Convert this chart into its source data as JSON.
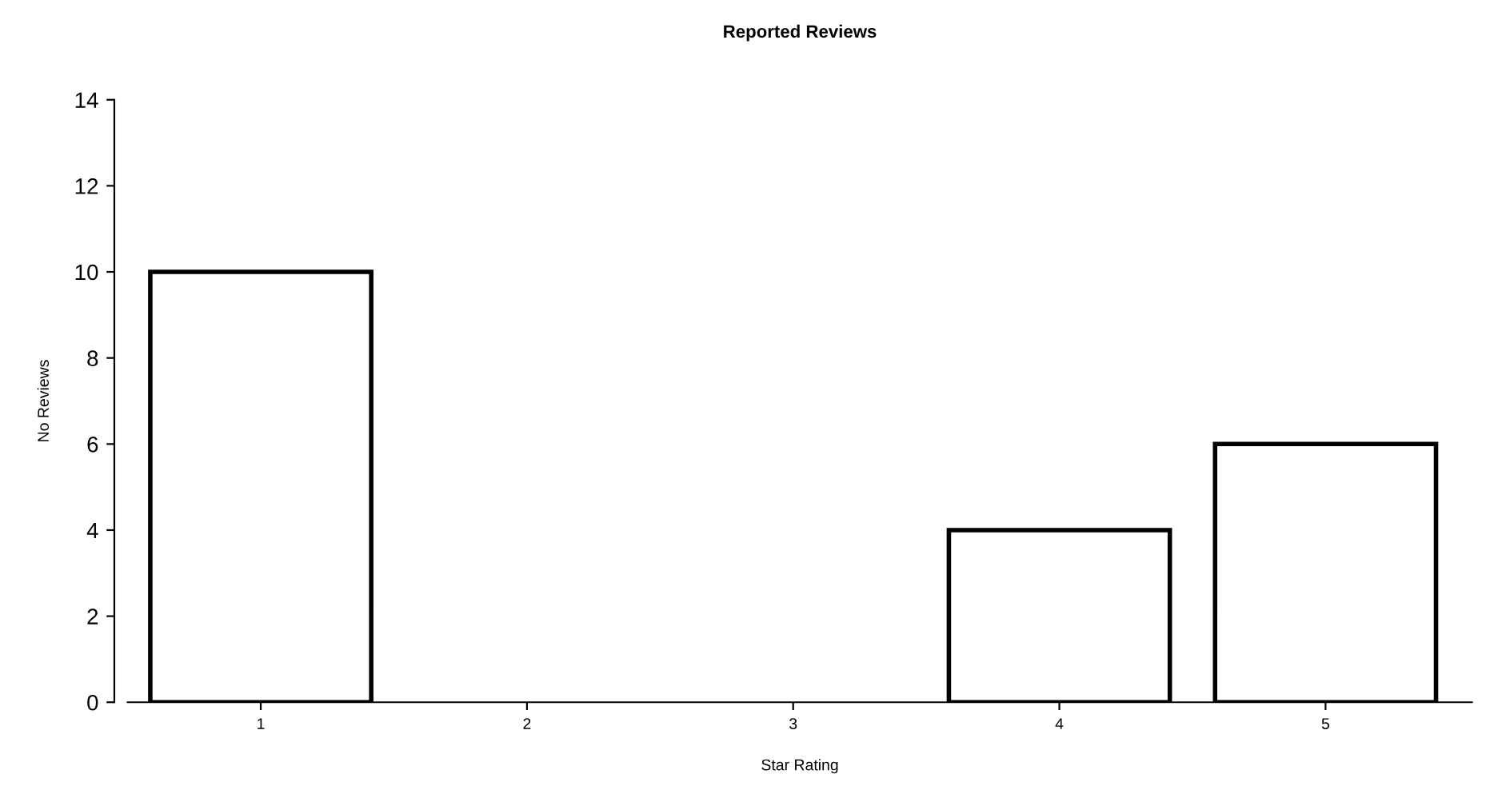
{
  "chart_data": {
    "type": "bar",
    "title": "Reported Reviews",
    "xlabel": "Star Rating",
    "ylabel": "No Reviews",
    "categories": [
      "1",
      "2",
      "3",
      "4",
      "5"
    ],
    "series": [
      {
        "color": "#ffffff",
        "values": [
          10,
          0,
          0,
          4,
          6
        ]
      }
    ],
    "ylim": [
      0,
      14
    ],
    "yticks": [
      0,
      2,
      4,
      6,
      8,
      10,
      12,
      14
    ],
    "grid": false,
    "legend": false
  }
}
